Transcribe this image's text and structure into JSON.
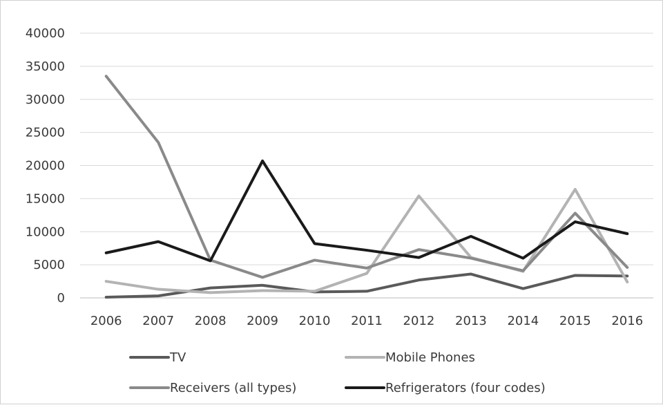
{
  "chart_data": {
    "type": "line",
    "title": "",
    "xlabel": "",
    "ylabel": "",
    "categories": [
      "2006",
      "2007",
      "2008",
      "2009",
      "2010",
      "2011",
      "2012",
      "2013",
      "2014",
      "2015",
      "2016"
    ],
    "ylim": [
      0,
      40000
    ],
    "yticks": [
      0,
      5000,
      10000,
      15000,
      20000,
      25000,
      30000,
      35000,
      40000
    ],
    "grid": true,
    "legend_position": "bottom",
    "series": [
      {
        "name": "TV",
        "color": "#5a5a5a",
        "values": [
          100,
          300,
          1500,
          1900,
          900,
          1000,
          2700,
          3600,
          1400,
          3400,
          3300
        ]
      },
      {
        "name": "Mobile Phones",
        "color": "#b3b3b3",
        "values": [
          2500,
          1300,
          800,
          1100,
          1000,
          3700,
          15400,
          6100,
          4000,
          16400,
          2400
        ]
      },
      {
        "name": "Receivers (all types)",
        "color": "#8a8a8a",
        "values": [
          33500,
          23500,
          5700,
          3100,
          5700,
          4500,
          7300,
          6000,
          4100,
          12800,
          4600
        ]
      },
      {
        "name": "Refrigerators (four codes)",
        "color": "#1a1a1a",
        "values": [
          6800,
          8500,
          5600,
          20700,
          8200,
          7200,
          6100,
          9300,
          6000,
          11500,
          9700
        ]
      }
    ]
  }
}
